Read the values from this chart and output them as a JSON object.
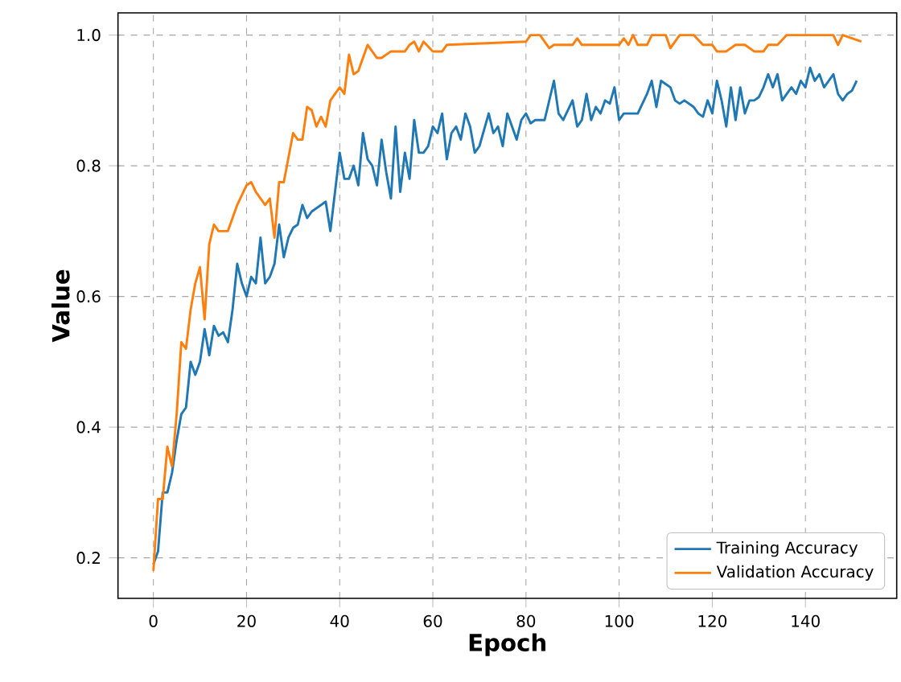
{
  "chart_data": {
    "type": "line",
    "xlabel": "Epoch",
    "ylabel": "Value",
    "xlim": [
      -7.6,
      159.6
    ],
    "ylim": [
      0.138,
      1.034
    ],
    "xticks": [
      0,
      20,
      40,
      60,
      80,
      100,
      120,
      140
    ],
    "yticks": [
      {
        "value": 0.2,
        "label": "0.2"
      },
      {
        "value": 0.4,
        "label": "0.4"
      },
      {
        "value": 0.6,
        "label": "0.6"
      },
      {
        "value": 0.8,
        "label": "0.8"
      },
      {
        "value": 1.0,
        "label": "1.0"
      }
    ],
    "grid": true,
    "legend": "bottom right",
    "line_style": "solid",
    "marker": "none",
    "series": [
      {
        "name": "Training Accuracy",
        "color": "#1f77b4",
        "x": [
          0,
          1,
          2,
          3,
          4,
          5,
          6,
          7,
          8,
          9,
          10,
          11,
          12,
          13,
          14,
          15,
          16,
          17,
          18,
          19,
          20,
          21,
          22,
          23,
          24,
          25,
          26,
          27,
          28,
          29,
          30,
          31,
          32,
          33,
          34,
          36,
          37,
          38,
          40,
          41,
          42,
          43,
          44,
          45,
          46,
          47,
          48,
          49,
          50,
          51,
          52,
          53,
          54,
          55,
          56,
          57,
          58,
          59,
          60,
          61,
          62,
          63,
          64,
          65,
          66,
          67,
          68,
          69,
          70,
          72,
          73,
          74,
          75,
          76,
          77,
          78,
          79,
          80,
          81,
          82,
          84,
          86,
          87,
          88,
          90,
          91,
          92,
          93,
          94,
          95,
          96,
          97,
          98,
          99,
          100,
          101,
          102,
          104,
          106,
          107,
          108,
          109,
          110,
          111,
          112,
          113,
          114,
          116,
          117,
          118,
          119,
          120,
          121,
          122,
          123,
          124,
          125,
          126,
          127,
          128,
          129,
          130,
          131,
          132,
          133,
          134,
          135,
          136,
          137,
          138,
          139,
          140,
          141,
          142,
          143,
          144,
          145,
          146,
          147,
          148,
          149,
          150,
          151
        ],
        "values": [
          0.19,
          0.21,
          0.3,
          0.3,
          0.33,
          0.38,
          0.42,
          0.43,
          0.5,
          0.48,
          0.5,
          0.55,
          0.51,
          0.555,
          0.54,
          0.545,
          0.53,
          0.58,
          0.65,
          0.62,
          0.6,
          0.63,
          0.62,
          0.69,
          0.62,
          0.63,
          0.65,
          0.71,
          0.66,
          0.69,
          0.705,
          0.71,
          0.74,
          0.72,
          0.73,
          0.74,
          0.745,
          0.7,
          0.82,
          0.78,
          0.78,
          0.8,
          0.77,
          0.85,
          0.81,
          0.8,
          0.77,
          0.84,
          0.79,
          0.75,
          0.86,
          0.76,
          0.82,
          0.78,
          0.87,
          0.82,
          0.82,
          0.83,
          0.86,
          0.85,
          0.88,
          0.81,
          0.85,
          0.86,
          0.84,
          0.88,
          0.86,
          0.82,
          0.83,
          0.88,
          0.85,
          0.86,
          0.83,
          0.88,
          0.86,
          0.84,
          0.87,
          0.88,
          0.865,
          0.87,
          0.87,
          0.93,
          0.88,
          0.87,
          0.9,
          0.86,
          0.87,
          0.91,
          0.87,
          0.89,
          0.88,
          0.9,
          0.895,
          0.92,
          0.87,
          0.88,
          0.88,
          0.88,
          0.91,
          0.93,
          0.89,
          0.93,
          0.925,
          0.92,
          0.9,
          0.895,
          0.9,
          0.89,
          0.88,
          0.875,
          0.9,
          0.88,
          0.93,
          0.9,
          0.86,
          0.92,
          0.87,
          0.92,
          0.88,
          0.9,
          0.9,
          0.905,
          0.92,
          0.94,
          0.92,
          0.94,
          0.9,
          0.91,
          0.92,
          0.91,
          0.93,
          0.92,
          0.95,
          0.93,
          0.94,
          0.92,
          0.93,
          0.94,
          0.91,
          0.9,
          0.91,
          0.915,
          0.93
        ]
      },
      {
        "name": "Validation Accuracy",
        "color": "#ff7f0e",
        "x": [
          0,
          1,
          2,
          3,
          4,
          5,
          6,
          7,
          8,
          9,
          10,
          11,
          12,
          13,
          14,
          16,
          18,
          20,
          21,
          22,
          24,
          25,
          26,
          27,
          28,
          30,
          31,
          32,
          33,
          34,
          35,
          36,
          37,
          38,
          40,
          41,
          42,
          43,
          44,
          46,
          48,
          49,
          51,
          54,
          55,
          56,
          57,
          58,
          60,
          62,
          63,
          80,
          81,
          83,
          85,
          86,
          90,
          91,
          92,
          100,
          101,
          102,
          103,
          104,
          106,
          107,
          110,
          111,
          113,
          116,
          118,
          120,
          121,
          123,
          125,
          127,
          129,
          131,
          132,
          134,
          136,
          146,
          147,
          148,
          150,
          152
        ],
        "values": [
          0.18,
          0.29,
          0.29,
          0.37,
          0.34,
          0.42,
          0.53,
          0.52,
          0.58,
          0.62,
          0.645,
          0.565,
          0.68,
          0.71,
          0.7,
          0.7,
          0.74,
          0.77,
          0.775,
          0.76,
          0.74,
          0.75,
          0.69,
          0.775,
          0.775,
          0.85,
          0.84,
          0.84,
          0.89,
          0.885,
          0.86,
          0.875,
          0.86,
          0.9,
          0.92,
          0.91,
          0.97,
          0.94,
          0.945,
          0.985,
          0.965,
          0.965,
          0.975,
          0.975,
          0.985,
          0.99,
          0.975,
          0.99,
          0.975,
          0.975,
          0.985,
          0.99,
          1.0,
          1.0,
          0.98,
          0.985,
          0.985,
          0.995,
          0.985,
          0.985,
          0.995,
          0.985,
          1.0,
          0.985,
          0.985,
          1.0,
          1.0,
          0.98,
          1.0,
          1.0,
          0.985,
          0.985,
          0.975,
          0.975,
          0.985,
          0.985,
          0.975,
          0.975,
          0.985,
          0.985,
          1.0,
          1.0,
          0.985,
          1.0,
          0.995,
          0.99
        ]
      }
    ]
  }
}
